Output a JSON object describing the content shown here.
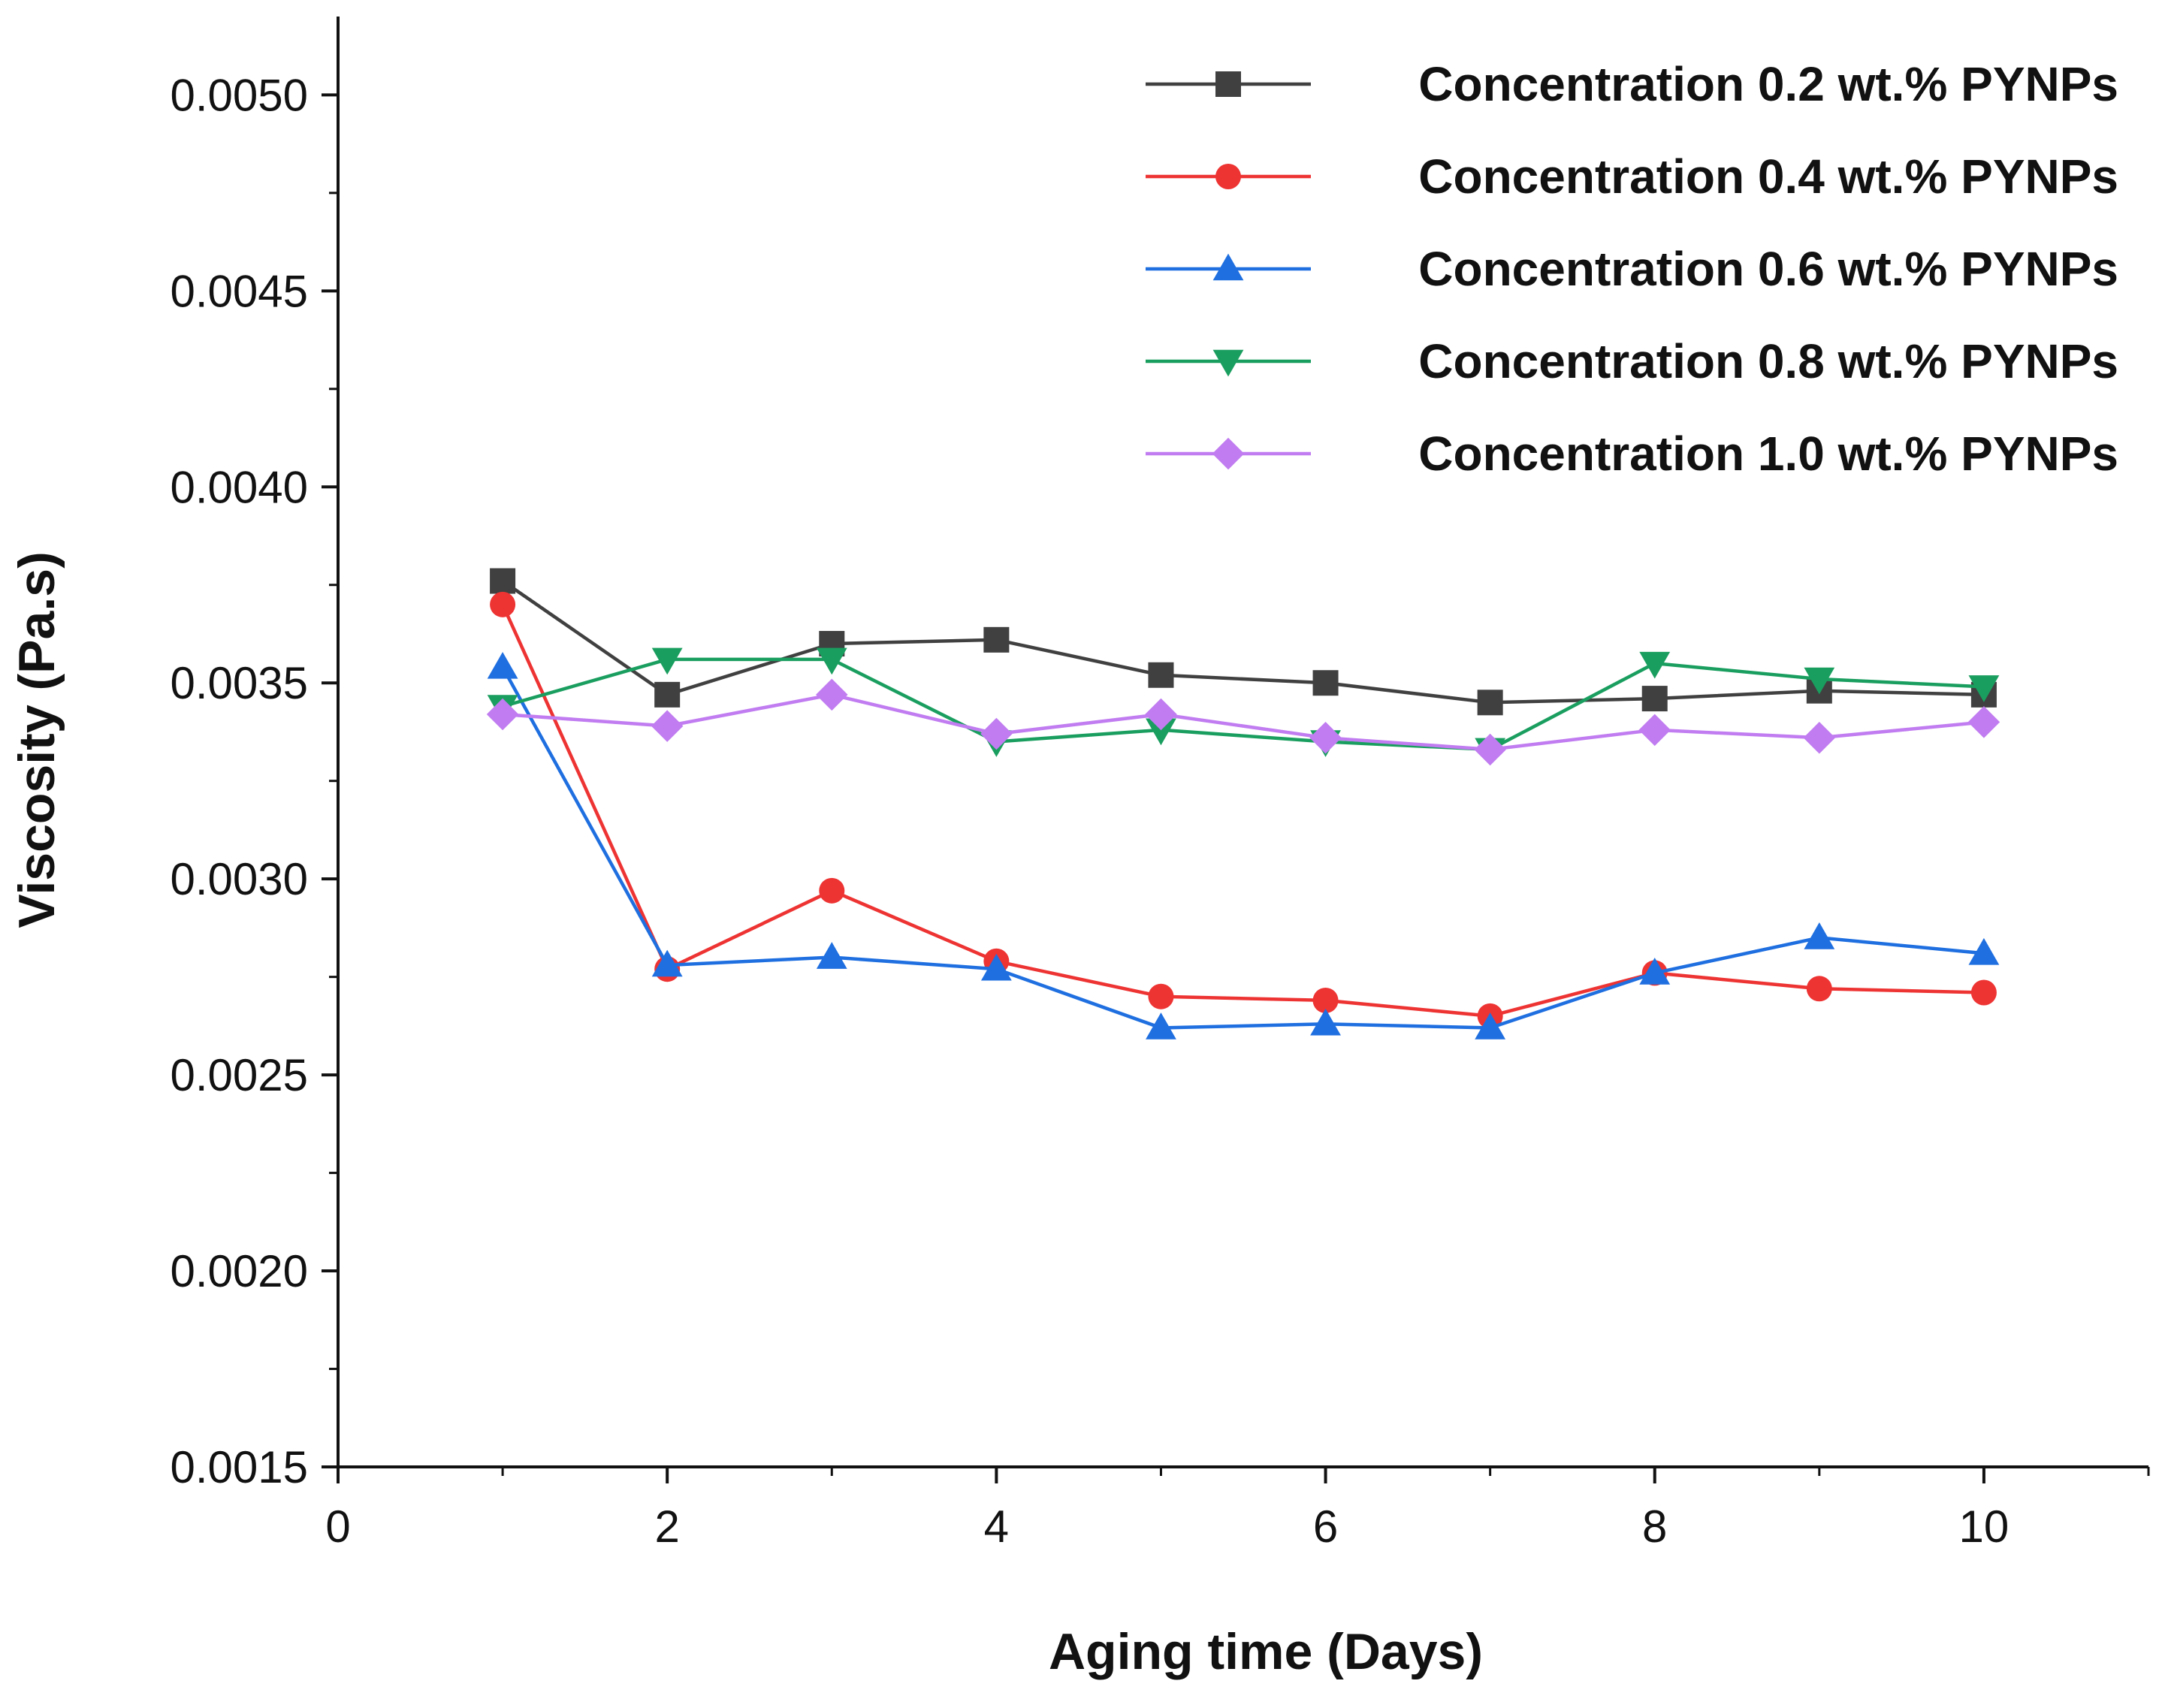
{
  "chart_data": {
    "type": "line",
    "title": "",
    "xlabel": "Aging time (Days)",
    "ylabel": "Viscosity (Pa.s)",
    "xlim": [
      0,
      11
    ],
    "ylim": [
      0.0015,
      0.0052
    ],
    "x_ticks": [
      0,
      2,
      4,
      6,
      8,
      10
    ],
    "x_tick_labels": [
      "0",
      "2",
      "4",
      "6",
      "8",
      "10"
    ],
    "y_ticks": [
      0.0015,
      0.002,
      0.0025,
      0.003,
      0.0035,
      0.004,
      0.0045,
      0.005
    ],
    "y_tick_labels": [
      "0.0015",
      "0.0020",
      "0.0025",
      "0.0030",
      "0.0035",
      "0.0040",
      "0.0045",
      "0.0050"
    ],
    "grid": false,
    "legend_position": "top-right",
    "x": [
      1,
      2,
      3,
      4,
      5,
      6,
      7,
      8,
      9,
      10
    ],
    "series": [
      {
        "name": "Concentration 0.2 wt.% PYNPs",
        "color": "#404040",
        "marker": "square",
        "values": [
          0.00376,
          0.00347,
          0.0036,
          0.00361,
          0.00352,
          0.0035,
          0.00345,
          0.00346,
          0.00348,
          0.00347
        ]
      },
      {
        "name": "Concentration 0.4 wt.% PYNPs",
        "color": "#ee3333",
        "marker": "circle",
        "values": [
          0.0037,
          0.00277,
          0.00297,
          0.00279,
          0.0027,
          0.00269,
          0.00265,
          0.00276,
          0.00272,
          0.00271
        ]
      },
      {
        "name": "Concentration 0.6 wt.% PYNPs",
        "color": "#1f6fe0",
        "marker": "triangle-up",
        "values": [
          0.00354,
          0.00278,
          0.0028,
          0.00277,
          0.00262,
          0.00263,
          0.00262,
          0.00276,
          0.00285,
          0.00281
        ]
      },
      {
        "name": "Concentration 0.8 wt.% PYNPs",
        "color": "#1a9e5f",
        "marker": "triangle-down",
        "values": [
          0.00344,
          0.00356,
          0.00356,
          0.00335,
          0.00338,
          0.00335,
          0.00333,
          0.00355,
          0.00351,
          0.00349
        ]
      },
      {
        "name": "Concentration 1.0 wt.% PYNPs",
        "color": "#c07cf0",
        "marker": "diamond",
        "values": [
          0.00342,
          0.00339,
          0.00347,
          0.00337,
          0.00342,
          0.00336,
          0.00333,
          0.00338,
          0.00336,
          0.0034
        ]
      }
    ]
  }
}
